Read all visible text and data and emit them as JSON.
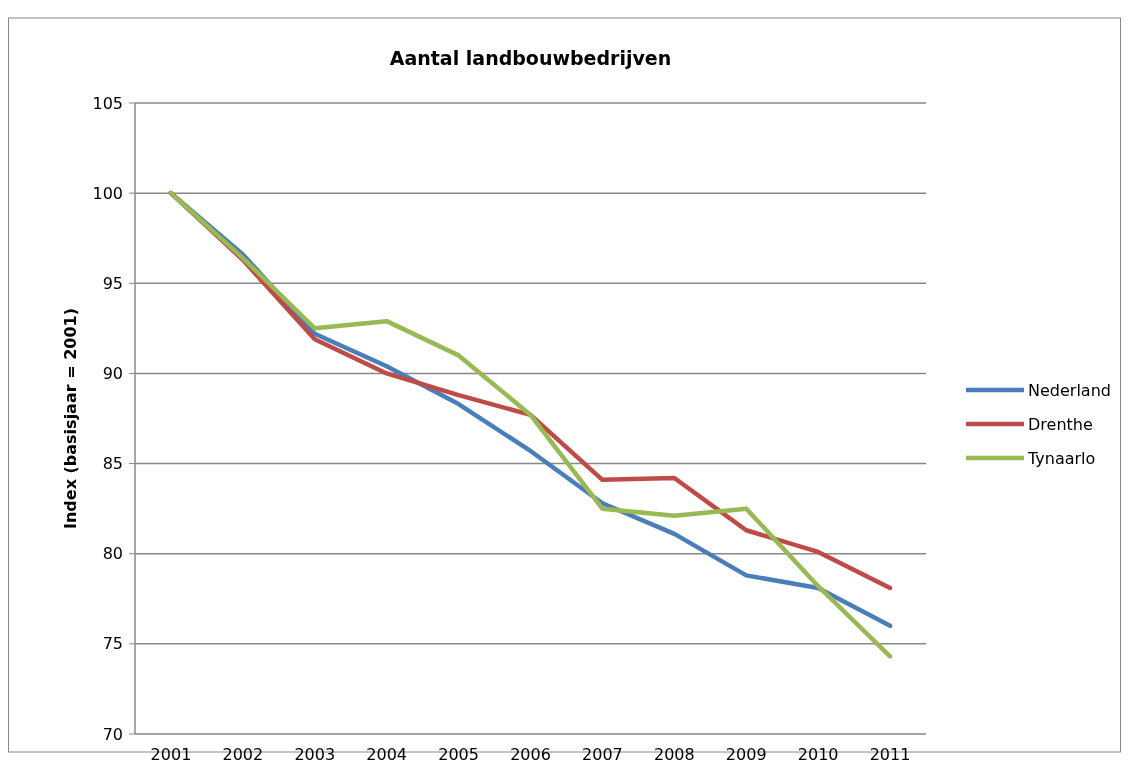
{
  "chart_data": {
    "type": "line",
    "title": "Aantal landbouwbedrijven",
    "ylabel": "Index (basisjaar = 2001)",
    "categories": [
      "2001",
      "2002",
      "2003",
      "2004",
      "2005",
      "2006",
      "2007",
      "2008",
      "2009",
      "2010",
      "2011"
    ],
    "series": [
      {
        "name": "Nederland",
        "color": "#4a7ebb",
        "values": [
          100,
          96.6,
          92.2,
          90.4,
          88.3,
          85.7,
          82.8,
          81.1,
          78.8,
          78.1,
          76.0
        ]
      },
      {
        "name": "Drenthe",
        "color": "#be4b48",
        "values": [
          100,
          96.3,
          91.9,
          90.0,
          88.8,
          87.7,
          84.1,
          84.2,
          81.3,
          80.1,
          78.1
        ]
      },
      {
        "name": "Tynaarlo",
        "color": "#98b954",
        "values": [
          100,
          96.4,
          92.5,
          92.9,
          91.0,
          87.7,
          82.5,
          82.1,
          82.5,
          78.2,
          74.3
        ]
      }
    ],
    "ylim": [
      70,
      105
    ],
    "yticks": [
      70,
      75,
      80,
      85,
      90,
      95,
      100,
      105
    ],
    "grid": "y",
    "legend": "right",
    "marker": "none",
    "line_style": "solid"
  }
}
